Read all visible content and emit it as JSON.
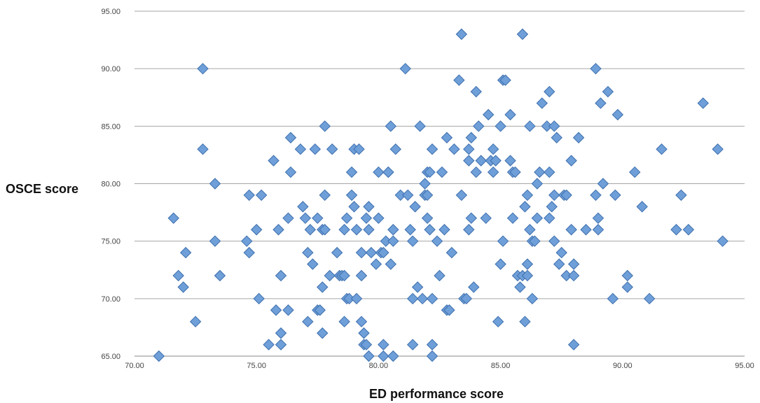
{
  "chart_data": {
    "type": "scatter",
    "title": "",
    "xlabel": "ED performance score",
    "ylabel": "OSCE score",
    "xlim": [
      70,
      95
    ],
    "ylim": [
      65,
      95
    ],
    "x_ticks": [
      "70.00",
      "75.00",
      "80.00",
      "85.00",
      "90.00",
      "95.00"
    ],
    "y_ticks": [
      "65.00",
      "70.00",
      "75.00",
      "80.00",
      "85.00",
      "90.00",
      "95.00"
    ],
    "grid": "horizontal",
    "legend": "none",
    "marker": "diamond",
    "marker_color": "#6f9fd8",
    "series": [
      {
        "points": [
          [
            71.0,
            65
          ],
          [
            71.6,
            77
          ],
          [
            71.8,
            72
          ],
          [
            72.0,
            71
          ],
          [
            72.1,
            74
          ],
          [
            72.5,
            68
          ],
          [
            72.8,
            90
          ],
          [
            72.8,
            83
          ],
          [
            73.3,
            80
          ],
          [
            73.3,
            75
          ],
          [
            73.5,
            72
          ],
          [
            74.6,
            75
          ],
          [
            74.7,
            79
          ],
          [
            74.7,
            74
          ],
          [
            75.0,
            76
          ],
          [
            75.1,
            70
          ],
          [
            75.2,
            79
          ],
          [
            75.5,
            66
          ],
          [
            75.7,
            82
          ],
          [
            75.8,
            69
          ],
          [
            75.9,
            76
          ],
          [
            76.0,
            72
          ],
          [
            76.0,
            67
          ],
          [
            76.0,
            66
          ],
          [
            76.3,
            77
          ],
          [
            76.3,
            69
          ],
          [
            76.4,
            84
          ],
          [
            76.4,
            81
          ],
          [
            76.8,
            83
          ],
          [
            76.9,
            78
          ],
          [
            77.0,
            77
          ],
          [
            77.1,
            74
          ],
          [
            77.1,
            68
          ],
          [
            77.2,
            76
          ],
          [
            77.3,
            73
          ],
          [
            77.4,
            83
          ],
          [
            77.5,
            77
          ],
          [
            77.5,
            69
          ],
          [
            77.6,
            69
          ],
          [
            77.7,
            67
          ],
          [
            77.7,
            76
          ],
          [
            77.7,
            71
          ],
          [
            77.8,
            85
          ],
          [
            77.8,
            79
          ],
          [
            77.8,
            76
          ],
          [
            78.0,
            72
          ],
          [
            78.1,
            83
          ],
          [
            78.3,
            74
          ],
          [
            78.4,
            72
          ],
          [
            78.5,
            72
          ],
          [
            78.6,
            68
          ],
          [
            78.6,
            72
          ],
          [
            78.6,
            76
          ],
          [
            78.7,
            77
          ],
          [
            78.7,
            70
          ],
          [
            78.8,
            70
          ],
          [
            78.9,
            79
          ],
          [
            78.9,
            81
          ],
          [
            79.0,
            83
          ],
          [
            79.0,
            78
          ],
          [
            79.1,
            76
          ],
          [
            79.1,
            70
          ],
          [
            79.2,
            83
          ],
          [
            79.3,
            74
          ],
          [
            79.3,
            72
          ],
          [
            79.3,
            68
          ],
          [
            79.4,
            67
          ],
          [
            79.4,
            66
          ],
          [
            79.5,
            66
          ],
          [
            79.5,
            77
          ],
          [
            79.6,
            76
          ],
          [
            79.6,
            78
          ],
          [
            79.6,
            65
          ],
          [
            79.7,
            74
          ],
          [
            79.9,
            73
          ],
          [
            80.0,
            81
          ],
          [
            80.0,
            77
          ],
          [
            80.1,
            74
          ],
          [
            80.2,
            74
          ],
          [
            80.2,
            66
          ],
          [
            80.2,
            65
          ],
          [
            80.3,
            75
          ],
          [
            80.4,
            81
          ],
          [
            80.4,
            81
          ],
          [
            80.5,
            85
          ],
          [
            80.5,
            73
          ],
          [
            80.6,
            75
          ],
          [
            80.6,
            76
          ],
          [
            80.6,
            65
          ],
          [
            80.7,
            83
          ],
          [
            80.9,
            79
          ],
          [
            81.1,
            90
          ],
          [
            81.2,
            79
          ],
          [
            81.3,
            76
          ],
          [
            81.4,
            75
          ],
          [
            81.4,
            70
          ],
          [
            81.4,
            66
          ],
          [
            81.5,
            78
          ],
          [
            81.6,
            71
          ],
          [
            81.7,
            85
          ],
          [
            81.8,
            70
          ],
          [
            81.9,
            80
          ],
          [
            81.9,
            79
          ],
          [
            82.0,
            81
          ],
          [
            82.0,
            79
          ],
          [
            82.0,
            77
          ],
          [
            82.1,
            81
          ],
          [
            82.1,
            76
          ],
          [
            82.2,
            65
          ],
          [
            82.2,
            66
          ],
          [
            82.2,
            70
          ],
          [
            82.2,
            83
          ],
          [
            82.4,
            75
          ],
          [
            82.5,
            72
          ],
          [
            82.6,
            81
          ],
          [
            82.7,
            76
          ],
          [
            82.8,
            84
          ],
          [
            82.8,
            69
          ],
          [
            82.9,
            69
          ],
          [
            83.0,
            74
          ],
          [
            83.1,
            83
          ],
          [
            83.3,
            89
          ],
          [
            83.4,
            93
          ],
          [
            83.4,
            79
          ],
          [
            83.5,
            70
          ],
          [
            83.6,
            70
          ],
          [
            83.7,
            76
          ],
          [
            83.7,
            83
          ],
          [
            83.7,
            82
          ],
          [
            83.8,
            84
          ],
          [
            83.8,
            77
          ],
          [
            83.9,
            71
          ],
          [
            84.0,
            88
          ],
          [
            84.0,
            81
          ],
          [
            84.1,
            85
          ],
          [
            84.2,
            82
          ],
          [
            84.4,
            77
          ],
          [
            84.5,
            86
          ],
          [
            84.6,
            82
          ],
          [
            84.7,
            81
          ],
          [
            84.7,
            83
          ],
          [
            84.8,
            82
          ],
          [
            84.9,
            68
          ],
          [
            85.0,
            73
          ],
          [
            85.0,
            85
          ],
          [
            85.1,
            89
          ],
          [
            85.1,
            75
          ],
          [
            85.2,
            89
          ],
          [
            85.4,
            82
          ],
          [
            85.4,
            86
          ],
          [
            85.5,
            81
          ],
          [
            85.5,
            77
          ],
          [
            85.6,
            81
          ],
          [
            85.7,
            72
          ],
          [
            85.8,
            71
          ],
          [
            85.9,
            93
          ],
          [
            85.9,
            72
          ],
          [
            86.0,
            68
          ],
          [
            86.0,
            78
          ],
          [
            86.1,
            73
          ],
          [
            86.1,
            79
          ],
          [
            86.1,
            72
          ],
          [
            86.2,
            85
          ],
          [
            86.2,
            76
          ],
          [
            86.3,
            75
          ],
          [
            86.3,
            70
          ],
          [
            86.4,
            75
          ],
          [
            86.5,
            77
          ],
          [
            86.5,
            80
          ],
          [
            86.6,
            81
          ],
          [
            86.7,
            87
          ],
          [
            86.9,
            85
          ],
          [
            87.0,
            81
          ],
          [
            87.0,
            77
          ],
          [
            87.0,
            88
          ],
          [
            87.1,
            78
          ],
          [
            87.2,
            85
          ],
          [
            87.2,
            79
          ],
          [
            87.2,
            75
          ],
          [
            87.3,
            84
          ],
          [
            87.4,
            73
          ],
          [
            87.5,
            74
          ],
          [
            87.6,
            79
          ],
          [
            87.7,
            72
          ],
          [
            87.7,
            79
          ],
          [
            87.9,
            82
          ],
          [
            87.9,
            76
          ],
          [
            88.0,
            73
          ],
          [
            88.0,
            72
          ],
          [
            88.0,
            66
          ],
          [
            88.2,
            84
          ],
          [
            88.5,
            76
          ],
          [
            88.9,
            90
          ],
          [
            88.9,
            79
          ],
          [
            89.0,
            77
          ],
          [
            89.0,
            76
          ],
          [
            89.1,
            87
          ],
          [
            89.2,
            80
          ],
          [
            89.4,
            88
          ],
          [
            89.6,
            70
          ],
          [
            89.7,
            79
          ],
          [
            89.8,
            86
          ],
          [
            90.2,
            72
          ],
          [
            90.2,
            71
          ],
          [
            90.5,
            81
          ],
          [
            90.8,
            78
          ],
          [
            91.1,
            70
          ],
          [
            91.6,
            83
          ],
          [
            92.2,
            76
          ],
          [
            92.4,
            79
          ],
          [
            92.7,
            76
          ],
          [
            93.3,
            87
          ],
          [
            93.9,
            83
          ],
          [
            94.1,
            75
          ]
        ]
      }
    ]
  }
}
